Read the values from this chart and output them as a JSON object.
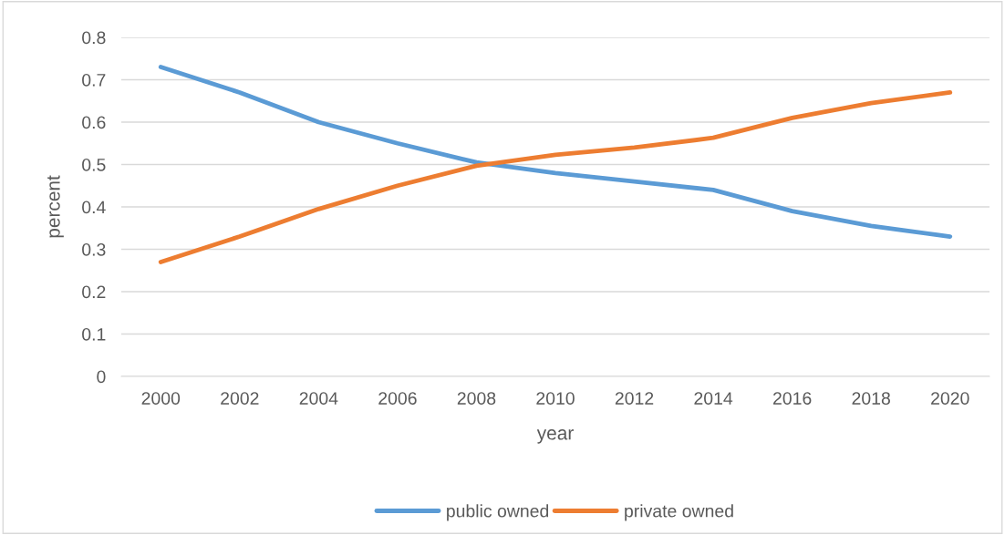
{
  "chart_data": {
    "type": "line",
    "xlabel": "year",
    "ylabel": "percent",
    "categories": [
      "2000",
      "2002",
      "2004",
      "2006",
      "2008",
      "2010",
      "2012",
      "2014",
      "2016",
      "2018",
      "2020"
    ],
    "series": [
      {
        "name": "public owned",
        "color": "#5b9bd5",
        "values": [
          0.73,
          0.67,
          0.6,
          0.55,
          0.505,
          0.48,
          0.46,
          0.44,
          0.39,
          0.355,
          0.33
        ]
      },
      {
        "name": "private owned",
        "color": "#ed7d31",
        "values": [
          0.27,
          0.33,
          0.395,
          0.45,
          0.497,
          0.523,
          0.54,
          0.563,
          0.61,
          0.645,
          0.67
        ]
      }
    ],
    "ylim": [
      0,
      0.8
    ],
    "yticks": [
      0,
      0.1,
      0.2,
      0.3,
      0.4,
      0.5,
      0.6,
      0.7,
      0.8
    ],
    "grid": "y",
    "legend": "bottom",
    "marker": "none",
    "line_style": "solid"
  }
}
